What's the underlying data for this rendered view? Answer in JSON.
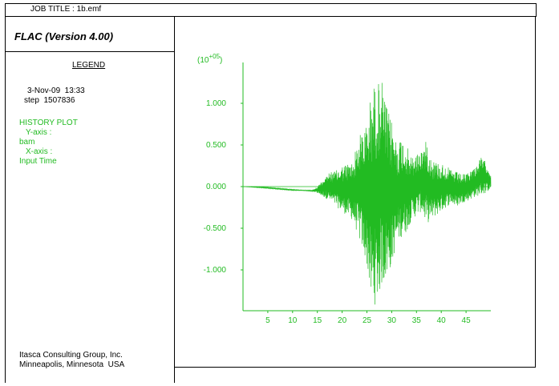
{
  "header": {
    "job_title": "JOB TITLE : 1b.emf",
    "app_title": "FLAC (Version 4.00)"
  },
  "legend": {
    "title": "LEGEND",
    "date": "3-Nov-09  13:33",
    "step": "step  1507836",
    "plot_type": "HISTORY PLOT",
    "y_axis_label": "Y-axis :",
    "y_axis_value": "bam",
    "x_axis_label": "X-axis :",
    "x_axis_value": "Input Time"
  },
  "footer": {
    "company": "Itasca Consulting Group, Inc.",
    "location": "Minneapolis, Minnesota  USA"
  },
  "colors": {
    "series": "#22bb22"
  },
  "chart_data": {
    "type": "line",
    "y_multiplier": "(10+05)",
    "y_ticks": [
      "1.000",
      "0.500",
      "0.000",
      "-0.500",
      "-1.000"
    ],
    "x_ticks": [
      "5",
      "10",
      "15",
      "20",
      "25",
      "30",
      "35",
      "40",
      "45"
    ],
    "xlim": [
      0,
      50
    ],
    "ylim": [
      -1.45,
      1.45
    ],
    "series": [
      {
        "envelope": [
          [
            0,
            0.0,
            0.0
          ],
          [
            2,
            -0.01,
            0.0
          ],
          [
            4,
            -0.02,
            0.0
          ],
          [
            6,
            -0.03,
            -0.01
          ],
          [
            8,
            -0.04,
            -0.02
          ],
          [
            10,
            -0.05,
            -0.03
          ],
          [
            12,
            -0.05,
            -0.04
          ],
          [
            14,
            -0.06,
            -0.04
          ],
          [
            15,
            -0.08,
            0.0
          ],
          [
            16,
            -0.12,
            0.08
          ],
          [
            17,
            -0.15,
            0.15
          ],
          [
            18,
            -0.2,
            0.18
          ],
          [
            19,
            -0.25,
            0.2
          ],
          [
            20,
            -0.3,
            0.25
          ],
          [
            21,
            -0.35,
            0.28
          ],
          [
            22,
            -0.4,
            0.3
          ],
          [
            23,
            -0.55,
            0.5
          ],
          [
            24,
            -0.75,
            0.7
          ],
          [
            25,
            -0.95,
            0.75
          ],
          [
            26,
            -1.45,
            1.2
          ],
          [
            27,
            -1.4,
            1.25
          ],
          [
            28,
            -1.2,
            1.28
          ],
          [
            29,
            -1.1,
            0.95
          ],
          [
            30,
            -0.95,
            0.8
          ],
          [
            31,
            -0.7,
            0.55
          ],
          [
            32,
            -0.6,
            0.6
          ],
          [
            33,
            -0.55,
            0.5
          ],
          [
            34,
            -0.4,
            0.35
          ],
          [
            35,
            -0.35,
            0.4
          ],
          [
            36,
            -0.3,
            0.45
          ],
          [
            37,
            -0.45,
            0.55
          ],
          [
            38,
            -0.4,
            0.35
          ],
          [
            39,
            -0.35,
            0.3
          ],
          [
            40,
            -0.3,
            0.28
          ],
          [
            41,
            -0.25,
            0.25
          ],
          [
            42,
            -0.2,
            0.2
          ],
          [
            43,
            -0.25,
            0.18
          ],
          [
            44,
            -0.2,
            0.15
          ],
          [
            45,
            -0.18,
            0.15
          ],
          [
            46,
            -0.15,
            0.2
          ],
          [
            47,
            -0.12,
            0.25
          ],
          [
            48,
            -0.1,
            0.35
          ],
          [
            49,
            -0.08,
            0.3
          ],
          [
            50,
            -0.02,
            0.15
          ]
        ]
      }
    ]
  }
}
